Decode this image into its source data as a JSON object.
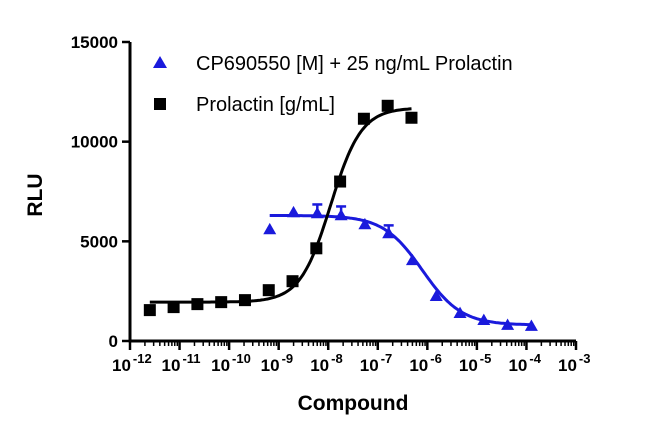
{
  "chart_data": {
    "type": "scatter",
    "title": "",
    "xlabel": "Compound",
    "ylabel": "RLU",
    "xscale": "log10",
    "xlim_exponents": [
      -12,
      -3
    ],
    "ylim": [
      0,
      15000
    ],
    "yticks": [
      0,
      5000,
      10000,
      15000
    ],
    "ytick_labels": [
      "0",
      "5000",
      "10000",
      "15000"
    ],
    "xtick_base": "10",
    "xtick_exponents": [
      "-12",
      "-11",
      "-10",
      "-9",
      "-8",
      "-7",
      "-6",
      "-5",
      "-4",
      "-3"
    ],
    "legend_position": "top",
    "series": [
      {
        "name": "CP690550 [M] + 25 ng/mL Prolactin",
        "marker": "triangle",
        "color": "#1a1adc",
        "points": [
          {
            "log_x": -9.18,
            "y": 5600
          },
          {
            "log_x": -8.7,
            "y": 6450
          },
          {
            "log_x": -8.22,
            "y": 6400,
            "err": 450
          },
          {
            "log_x": -7.74,
            "y": 6300,
            "err": 450
          },
          {
            "log_x": -7.26,
            "y": 5850
          },
          {
            "log_x": -6.78,
            "y": 5400,
            "err": 400
          },
          {
            "log_x": -6.3,
            "y": 4050
          },
          {
            "log_x": -5.82,
            "y": 2250
          },
          {
            "log_x": -5.34,
            "y": 1400
          },
          {
            "log_x": -4.86,
            "y": 1050
          },
          {
            "log_x": -4.38,
            "y": 800
          },
          {
            "log_x": -3.9,
            "y": 750
          }
        ],
        "fit": {
          "bottom": 800,
          "top": 6300,
          "log_ec50": -6.1,
          "hill": -1.1,
          "log_x_range": [
            -9.18,
            -3.9
          ]
        }
      },
      {
        "name": "Prolactin [g/mL]",
        "marker": "square",
        "color": "#000000",
        "points": [
          {
            "log_x": -11.6,
            "y": 1550
          },
          {
            "log_x": -11.12,
            "y": 1700
          },
          {
            "log_x": -10.64,
            "y": 1850
          },
          {
            "log_x": -10.16,
            "y": 1950
          },
          {
            "log_x": -9.68,
            "y": 2050
          },
          {
            "log_x": -9.2,
            "y": 2550
          },
          {
            "log_x": -8.72,
            "y": 3000
          },
          {
            "log_x": -8.24,
            "y": 4650
          },
          {
            "log_x": -7.76,
            "y": 8000
          },
          {
            "log_x": -7.28,
            "y": 11150
          },
          {
            "log_x": -6.8,
            "y": 11800
          },
          {
            "log_x": -6.32,
            "y": 11200
          }
        ],
        "fit": {
          "bottom": 1950,
          "top": 11700,
          "log_ec50": -7.95,
          "hill": 1.4,
          "log_x_range": [
            -11.6,
            -6.32
          ]
        }
      }
    ]
  }
}
